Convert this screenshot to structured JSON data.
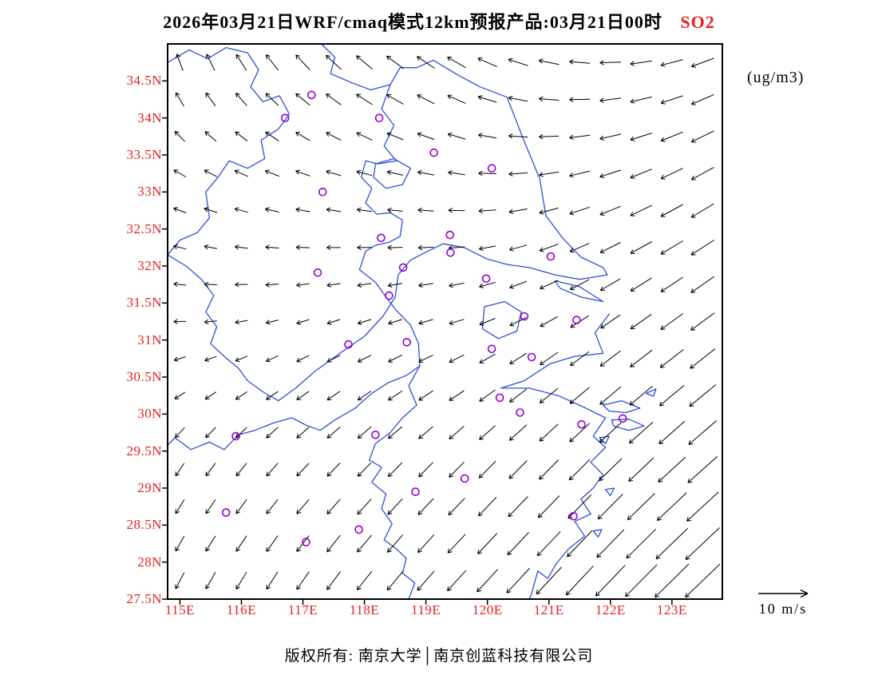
{
  "title": {
    "text": "2026年03月21日WRF/cmaq模式12km预报产品:03月21日00时",
    "pollutant": "SO2"
  },
  "units_label": "(ug/m3)",
  "footer": "版权所有: 南京大学│南京创蓝科技有限公司",
  "legend": {
    "label": "10 m/s",
    "speed": 10
  },
  "colors": {
    "axis_label": "#e62020",
    "title_pollutant": "#e62020",
    "coastline": "#2b50d9",
    "station": "#9400d3",
    "arrow": "#000000",
    "frame": "#000000"
  },
  "map": {
    "lon_min": 114.8,
    "lon_max": 123.82,
    "lat_min": 27.5,
    "lat_max": 35.0
  },
  "axes": {
    "lat_ticks": [
      {
        "value": 34.5,
        "label": "34.5N"
      },
      {
        "value": 34.0,
        "label": "34N"
      },
      {
        "value": 33.5,
        "label": "33.5N"
      },
      {
        "value": 33.0,
        "label": "33N"
      },
      {
        "value": 32.5,
        "label": "32.5N"
      },
      {
        "value": 32.0,
        "label": "32N"
      },
      {
        "value": 31.5,
        "label": "31.5N"
      },
      {
        "value": 31.0,
        "label": "31N"
      },
      {
        "value": 30.5,
        "label": "30.5N"
      },
      {
        "value": 30.0,
        "label": "30N"
      },
      {
        "value": 29.5,
        "label": "29.5N"
      },
      {
        "value": 29.0,
        "label": "29N"
      },
      {
        "value": 28.5,
        "label": "28.5N"
      },
      {
        "value": 28.0,
        "label": "28N"
      },
      {
        "value": 27.5,
        "label": "27.5N"
      }
    ],
    "lon_ticks": [
      {
        "value": 115,
        "label": "115E"
      },
      {
        "value": 116,
        "label": "116E"
      },
      {
        "value": 117,
        "label": "117E"
      },
      {
        "value": 118,
        "label": "118E"
      },
      {
        "value": 119,
        "label": "119E"
      },
      {
        "value": 120,
        "label": "120E"
      },
      {
        "value": 121,
        "label": "121E"
      },
      {
        "value": 122,
        "label": "122E"
      },
      {
        "value": 123,
        "label": "123E"
      }
    ]
  },
  "chart_data": {
    "type": "vector-map",
    "wind_grid": {
      "lon_points": [
        114.8,
        117.1,
        119.4,
        121.7,
        124.0
      ],
      "lat_points": [
        35.0,
        33.125,
        31.25,
        29.375,
        27.5
      ],
      "u": [
        [
          -0.1,
          -0.35,
          -0.45,
          -0.5,
          -0.55
        ],
        [
          -0.3,
          -0.35,
          -0.4,
          -0.5,
          -0.55
        ],
        [
          -0.3,
          -0.3,
          -0.35,
          -0.45,
          -0.6
        ],
        [
          -0.2,
          -0.3,
          -0.35,
          -0.5,
          -0.75
        ],
        [
          -0.2,
          -0.3,
          -0.45,
          -0.7,
          -0.95
        ]
      ],
      "v": [
        [
          0.45,
          0.4,
          0.3,
          0.05,
          -0.25
        ],
        [
          0.15,
          0.1,
          0.05,
          -0.15,
          -0.35
        ],
        [
          0.0,
          -0.1,
          -0.1,
          -0.3,
          -0.45
        ],
        [
          -0.3,
          -0.3,
          -0.35,
          -0.5,
          -0.65
        ],
        [
          -0.4,
          -0.45,
          -0.5,
          -0.75,
          -0.9
        ]
      ],
      "arrow_spacing_deg": 0.5
    },
    "stations_lonlat": [
      [
        117.14,
        34.31
      ],
      [
        116.71,
        34.0
      ],
      [
        118.24,
        34.0
      ],
      [
        119.13,
        33.53
      ],
      [
        120.07,
        33.32
      ],
      [
        117.32,
        33.0
      ],
      [
        119.39,
        32.42
      ],
      [
        118.27,
        32.38
      ],
      [
        119.4,
        32.18
      ],
      [
        121.03,
        32.13
      ],
      [
        118.63,
        31.98
      ],
      [
        117.24,
        31.91
      ],
      [
        119.98,
        31.83
      ],
      [
        118.4,
        31.6
      ],
      [
        120.6,
        31.32
      ],
      [
        121.45,
        31.27
      ],
      [
        117.74,
        30.94
      ],
      [
        118.69,
        30.97
      ],
      [
        120.07,
        30.88
      ],
      [
        120.72,
        30.77
      ],
      [
        120.2,
        30.22
      ],
      [
        120.53,
        30.02
      ],
      [
        121.53,
        29.86
      ],
      [
        122.2,
        29.94
      ],
      [
        115.91,
        29.7
      ],
      [
        118.18,
        29.72
      ],
      [
        119.63,
        29.13
      ],
      [
        118.83,
        28.95
      ],
      [
        121.4,
        28.62
      ],
      [
        115.75,
        28.67
      ],
      [
        117.91,
        28.44
      ],
      [
        117.05,
        28.27
      ]
    ],
    "coastlines": [
      [
        [
          114.8,
          34.75
        ],
        [
          115.15,
          34.92
        ],
        [
          115.45,
          34.8
        ],
        [
          115.75,
          34.95
        ],
        [
          116.1,
          34.88
        ],
        [
          116.28,
          34.65
        ],
        [
          116.15,
          34.42
        ],
        [
          116.35,
          34.22
        ],
        [
          116.62,
          34.3
        ],
        [
          116.78,
          34.05
        ],
        [
          116.6,
          33.85
        ],
        [
          116.32,
          33.7
        ],
        [
          116.38,
          33.45
        ],
        [
          116.1,
          33.32
        ],
        [
          115.8,
          33.42
        ],
        [
          115.62,
          33.2
        ],
        [
          115.42,
          33.0
        ],
        [
          115.48,
          32.65
        ],
        [
          115.28,
          32.45
        ],
        [
          115.0,
          32.35
        ],
        [
          114.8,
          32.15
        ]
      ],
      [
        [
          117.3,
          35.0
        ],
        [
          117.52,
          34.82
        ],
        [
          117.45,
          34.6
        ],
        [
          117.78,
          34.48
        ],
        [
          118.1,
          34.38
        ],
        [
          118.42,
          34.45
        ],
        [
          118.58,
          34.68
        ],
        [
          118.85,
          34.68
        ],
        [
          119.12,
          34.78
        ],
        [
          119.32,
          34.68
        ],
        [
          119.52,
          34.58
        ],
        [
          119.88,
          34.42
        ],
        [
          120.32,
          34.28
        ],
        [
          120.58,
          33.72
        ],
        [
          120.85,
          33.18
        ],
        [
          120.95,
          32.68
        ],
        [
          121.22,
          32.38
        ],
        [
          121.52,
          32.12
        ],
        [
          121.88,
          31.98
        ],
        [
          121.95,
          31.88
        ]
      ],
      [
        [
          121.95,
          31.88
        ],
        [
          121.5,
          31.82
        ],
        [
          121.1,
          31.88
        ],
        [
          120.68,
          31.98
        ],
        [
          120.32,
          32.02
        ],
        [
          119.98,
          32.1
        ],
        [
          119.62,
          32.25
        ],
        [
          119.28,
          32.3
        ],
        [
          118.98,
          32.18
        ],
        [
          118.75,
          32.08
        ],
        [
          118.55,
          31.88
        ],
        [
          118.5,
          31.58
        ],
        [
          118.3,
          31.32
        ],
        [
          118.0,
          31.05
        ],
        [
          117.6,
          30.82
        ],
        [
          117.2,
          30.58
        ],
        [
          116.88,
          30.35
        ],
        [
          116.6,
          30.18
        ]
      ],
      [
        [
          121.1,
          31.8
        ],
        [
          121.5,
          31.72
        ],
        [
          121.88,
          31.52
        ],
        [
          121.52,
          31.58
        ],
        [
          121.18,
          31.7
        ],
        [
          121.1,
          31.8
        ]
      ],
      [
        [
          121.98,
          31.35
        ],
        [
          121.75,
          31.1
        ],
        [
          121.88,
          30.82
        ],
        [
          121.42,
          30.78
        ],
        [
          121.02,
          30.68
        ],
        [
          120.6,
          30.45
        ],
        [
          120.22,
          30.35
        ],
        [
          120.68,
          30.35
        ],
        [
          121.15,
          30.25
        ],
        [
          121.6,
          30.08
        ],
        [
          121.92,
          29.95
        ]
      ],
      [
        [
          121.92,
          29.95
        ],
        [
          121.72,
          29.7
        ],
        [
          121.92,
          29.55
        ],
        [
          121.68,
          29.35
        ],
        [
          121.88,
          29.18
        ],
        [
          121.72,
          29.0
        ],
        [
          121.52,
          28.85
        ],
        [
          121.68,
          28.65
        ],
        [
          121.42,
          28.55
        ],
        [
          121.58,
          28.35
        ],
        [
          121.32,
          28.18
        ],
        [
          121.12,
          27.98
        ],
        [
          120.98,
          27.78
        ],
        [
          120.82,
          27.88
        ],
        [
          120.72,
          27.58
        ],
        [
          120.68,
          27.5
        ]
      ],
      [
        [
          121.88,
          30.12
        ],
        [
          122.18,
          30.18
        ],
        [
          122.48,
          30.08
        ],
        [
          122.25,
          30.02
        ],
        [
          121.98,
          30.04
        ],
        [
          121.88,
          30.12
        ]
      ],
      [
        [
          122.02,
          29.92
        ],
        [
          122.3,
          29.93
        ],
        [
          122.55,
          29.84
        ],
        [
          122.3,
          29.78
        ],
        [
          122.05,
          29.84
        ],
        [
          122.02,
          29.92
        ]
      ],
      [
        [
          122.58,
          30.28
        ],
        [
          122.74,
          30.34
        ],
        [
          122.7,
          30.24
        ],
        [
          122.58,
          30.28
        ]
      ],
      [
        [
          121.82,
          29.68
        ],
        [
          121.98,
          29.7
        ],
        [
          121.92,
          29.6
        ],
        [
          121.82,
          29.68
        ]
      ],
      [
        [
          121.92,
          28.98
        ],
        [
          122.06,
          29.0
        ],
        [
          122.0,
          28.9
        ],
        [
          121.92,
          28.98
        ]
      ],
      [
        [
          121.72,
          28.42
        ],
        [
          121.86,
          28.44
        ],
        [
          121.8,
          28.34
        ],
        [
          121.72,
          28.42
        ]
      ],
      [
        [
          118.42,
          34.45
        ],
        [
          118.28,
          34.12
        ],
        [
          118.48,
          33.9
        ],
        [
          118.32,
          33.62
        ],
        [
          118.52,
          33.42
        ],
        [
          118.22,
          33.38
        ],
        [
          118.02,
          33.42
        ],
        [
          117.95,
          33.2
        ],
        [
          118.12,
          33.05
        ],
        [
          118.02,
          32.85
        ],
        [
          118.2,
          32.7
        ],
        [
          118.42,
          32.72
        ],
        [
          118.62,
          32.62
        ],
        [
          118.58,
          32.4
        ],
        [
          118.4,
          32.32
        ],
        [
          118.18,
          32.28
        ],
        [
          118.02,
          32.2
        ],
        [
          117.92,
          31.95
        ],
        [
          118.18,
          31.78
        ],
        [
          118.38,
          31.55
        ],
        [
          118.52,
          31.4
        ]
      ],
      [
        [
          118.18,
          33.38
        ],
        [
          118.48,
          33.45
        ],
        [
          118.75,
          33.32
        ],
        [
          118.62,
          33.1
        ],
        [
          118.35,
          33.05
        ],
        [
          118.15,
          33.2
        ],
        [
          118.18,
          33.38
        ]
      ],
      [
        [
          118.52,
          31.4
        ],
        [
          118.75,
          31.2
        ],
        [
          118.88,
          30.95
        ],
        [
          118.9,
          30.65
        ],
        [
          118.68,
          30.52
        ],
        [
          118.38,
          30.42
        ],
        [
          118.12,
          30.28
        ],
        [
          117.85,
          30.08
        ],
        [
          117.52,
          29.92
        ],
        [
          117.28,
          29.78
        ],
        [
          117.05,
          29.85
        ],
        [
          116.82,
          29.95
        ],
        [
          116.52,
          29.88
        ],
        [
          116.22,
          29.78
        ],
        [
          115.95,
          29.72
        ],
        [
          115.72,
          29.52
        ],
        [
          115.48,
          29.62
        ],
        [
          115.18,
          29.52
        ],
        [
          114.92,
          29.68
        ],
        [
          114.8,
          29.58
        ]
      ],
      [
        [
          118.9,
          30.65
        ],
        [
          118.72,
          30.38
        ],
        [
          118.85,
          30.12
        ],
        [
          118.62,
          29.95
        ],
        [
          118.42,
          29.75
        ],
        [
          118.18,
          29.6
        ],
        [
          118.08,
          29.38
        ],
        [
          118.28,
          29.28
        ],
        [
          118.12,
          29.08
        ],
        [
          118.35,
          28.92
        ],
        [
          118.28,
          28.72
        ],
        [
          118.45,
          28.52
        ],
        [
          118.32,
          28.3
        ],
        [
          118.52,
          28.18
        ],
        [
          118.68,
          28.05
        ],
        [
          118.62,
          27.85
        ],
        [
          118.82,
          27.72
        ],
        [
          118.72,
          27.5
        ]
      ],
      [
        [
          114.8,
          32.15
        ],
        [
          115.1,
          32.0
        ],
        [
          115.35,
          31.82
        ],
        [
          115.55,
          31.6
        ],
        [
          115.42,
          31.38
        ],
        [
          115.6,
          31.18
        ],
        [
          115.5,
          30.95
        ],
        [
          115.72,
          30.78
        ],
        [
          115.95,
          30.62
        ],
        [
          116.1,
          30.45
        ],
        [
          116.35,
          30.3
        ],
        [
          116.6,
          30.18
        ]
      ],
      [
        [
          119.95,
          31.45
        ],
        [
          120.28,
          31.52
        ],
        [
          120.55,
          31.38
        ],
        [
          120.48,
          31.12
        ],
        [
          120.18,
          31.02
        ],
        [
          119.92,
          31.15
        ],
        [
          119.95,
          31.45
        ]
      ]
    ]
  }
}
